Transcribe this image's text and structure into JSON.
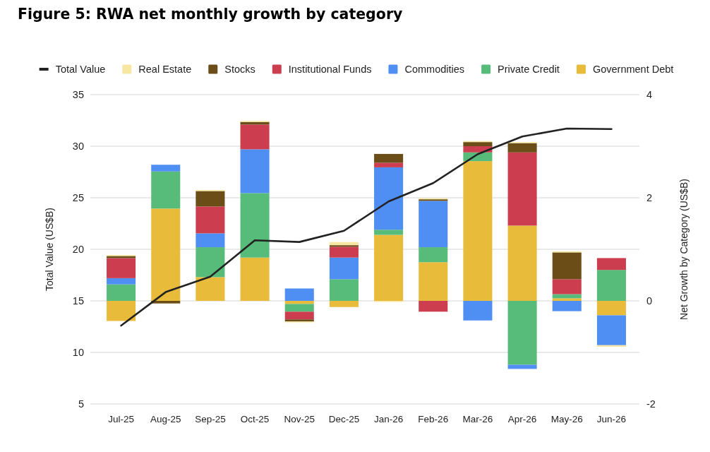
{
  "chart_data": {
    "type": "bar",
    "title": "Figure 5: RWA net monthly growth by category",
    "ylabel": "Total Value (US$B)",
    "y2label": "Net Growth by Category (US$B)",
    "categories": [
      "Jul-25",
      "Aug-25",
      "Sep-25",
      "Oct-25",
      "Nov-25",
      "Dec-25",
      "Jan-26",
      "Feb-26",
      "Mar-26",
      "Apr-26",
      "May-26",
      "Jun-26"
    ],
    "stacked": true,
    "ylim": [
      5,
      35
    ],
    "yticks": [
      5,
      10,
      15,
      20,
      25,
      30,
      35
    ],
    "y2lim": [
      -2,
      4
    ],
    "y2ticks": [
      -2,
      0,
      2,
      4
    ],
    "grid": "y",
    "legend": "top",
    "series": [
      {
        "name": "Total Value",
        "type": "line",
        "color": "#222222",
        "values": [
          12.6,
          15.85,
          17.35,
          20.87,
          20.71,
          21.8,
          24.64,
          26.42,
          29.23,
          30.94,
          31.71,
          31.66
        ]
      },
      {
        "name": "Government Debt",
        "color": "#e9bb3b",
        "axis": "y2",
        "values": [
          -0.39,
          1.79,
          0.46,
          0.84,
          -0.06,
          -0.12,
          1.28,
          0.75,
          2.71,
          1.46,
          0.05,
          -0.28
        ]
      },
      {
        "name": "Private Credit",
        "color": "#57bb7a",
        "axis": "y2",
        "values": [
          0.32,
          0.72,
          0.58,
          1.25,
          -0.15,
          0.42,
          0.1,
          0.29,
          0.17,
          -1.24,
          0.08,
          0.6
        ]
      },
      {
        "name": "Commodities",
        "color": "#4f8ef2",
        "axis": "y2",
        "values": [
          0.12,
          0.13,
          0.27,
          0.85,
          0.24,
          0.42,
          1.21,
          0.9,
          -0.38,
          -0.08,
          -0.2,
          -0.58
        ]
      },
      {
        "name": "Institutional Funds",
        "color": "#cc3e4f",
        "axis": "y2",
        "values": [
          0.39,
          null,
          0.52,
          0.48,
          -0.15,
          0.21,
          0.09,
          -0.21,
          0.12,
          1.42,
          0.29,
          0.23
        ]
      },
      {
        "name": "Stocks",
        "color": "#6b4d18",
        "axis": "y2",
        "values": [
          0.04,
          -0.05,
          0.3,
          0.05,
          -0.04,
          0.03,
          0.17,
          0.03,
          0.08,
          0.18,
          0.52,
          null
        ]
      },
      {
        "name": "Real Estate",
        "color": "#f7e7a3",
        "axis": "y2",
        "values": [
          0.02,
          null,
          0.02,
          0.02,
          -0.02,
          0.06,
          -0.02,
          0.02,
          0.02,
          0.02,
          0.02,
          -0.03
        ]
      }
    ]
  }
}
